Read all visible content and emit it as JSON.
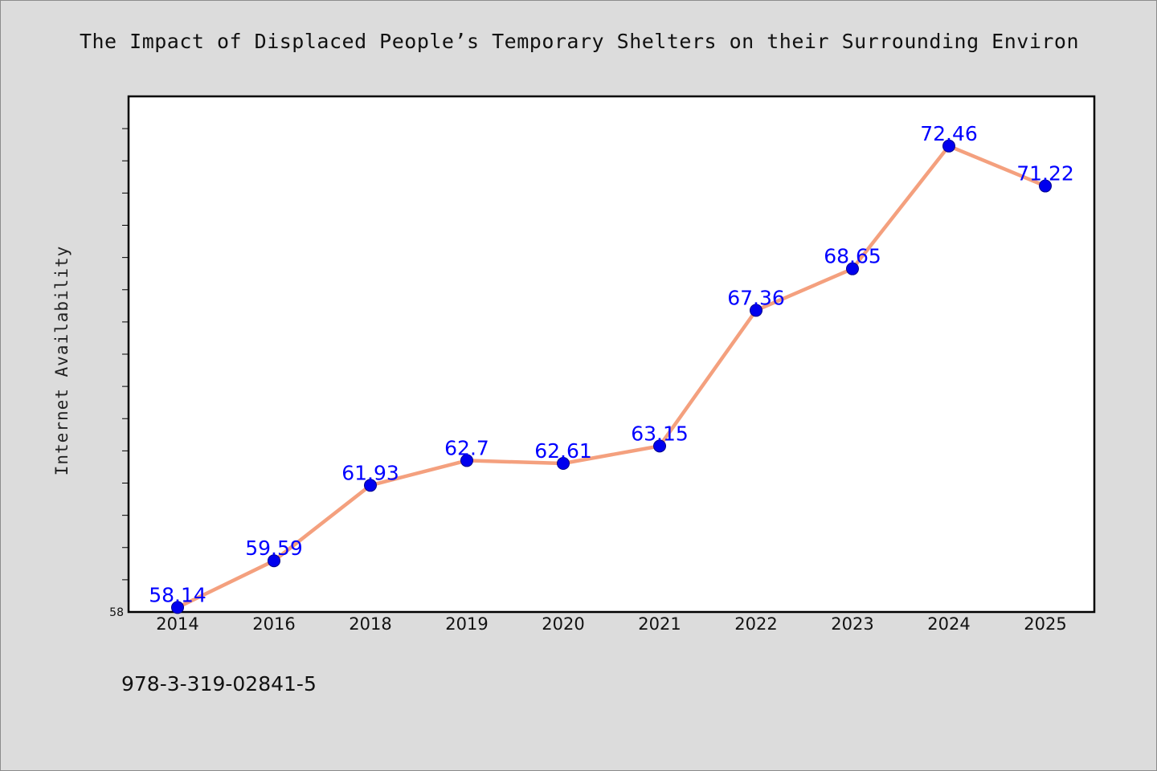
{
  "chart_data": {
    "type": "line",
    "title": "The Impact of Displaced People’s Temporary Shelters on their Surrounding Environ",
    "xlabel": "",
    "ylabel": "Internet Availability",
    "categories": [
      "2014",
      "2016",
      "2018",
      "2019",
      "2020",
      "2021",
      "2022",
      "2023",
      "2024",
      "2025"
    ],
    "series": [
      {
        "values": [
          58.14,
          59.59,
          61.93,
          62.7,
          62.61,
          63.15,
          67.36,
          68.65,
          72.46,
          71.22
        ]
      }
    ],
    "data_labels": [
      "58.14",
      "59.59",
      "61.93",
      "62.7",
      "62.61",
      "63.15",
      "67.36",
      "68.65",
      "72.46",
      "71.22"
    ],
    "ylim": [
      58,
      74
    ],
    "y_tick_labels": [
      "58"
    ],
    "grid": false,
    "legend": "none",
    "colors": {
      "line": "#f4a07e",
      "marker": "#0000ee",
      "label": "#0000ff"
    }
  },
  "footer": {
    "caption": "978-3-319-02841-5"
  }
}
